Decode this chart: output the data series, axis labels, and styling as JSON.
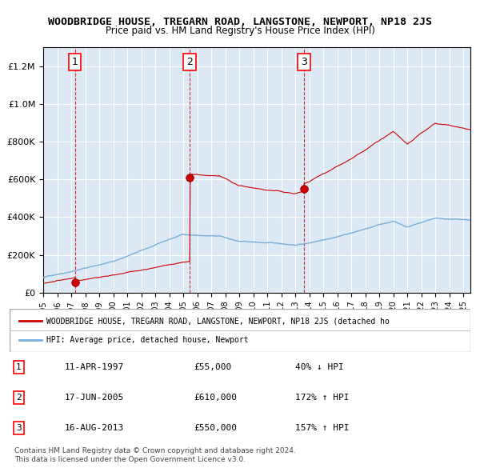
{
  "title": "WOODBRIDGE HOUSE, TREGARN ROAD, LANGSTONE, NEWPORT, NP18 2JS",
  "subtitle": "Price paid vs. HM Land Registry's House Price Index (HPI)",
  "bg_color": "#dce9f5",
  "plot_bg_color": "#dce9f5",
  "hpi_color": "#7aaed6",
  "price_color": "#cc0000",
  "sale_marker_color": "#cc0000",
  "dashed_line_color": "#cc0000",
  "sales": [
    {
      "date_num": 1997.27,
      "price": 55000,
      "label": "1"
    },
    {
      "date_num": 2005.46,
      "price": 610000,
      "label": "2"
    },
    {
      "date_num": 2013.62,
      "price": 550000,
      "label": "3"
    }
  ],
  "legend_text_red": "WOODBRIDGE HOUSE, TREGARN ROAD, LANGSTONE, NEWPORT, NP18 2JS (detached ho",
  "legend_text_blue": "HPI: Average price, detached house, Newport",
  "table_rows": [
    [
      "1",
      "11-APR-1997",
      "£55,000",
      "40% ↓ HPI"
    ],
    [
      "2",
      "17-JUN-2005",
      "£610,000",
      "172% ↑ HPI"
    ],
    [
      "3",
      "16-AUG-2013",
      "£550,000",
      "157% ↑ HPI"
    ]
  ],
  "footer": "Contains HM Land Registry data © Crown copyright and database right 2024.\nThis data is licensed under the Open Government Licence v3.0.",
  "ylim": [
    0,
    1300000
  ],
  "xlim_start": 1995.0,
  "xlim_end": 2025.5
}
